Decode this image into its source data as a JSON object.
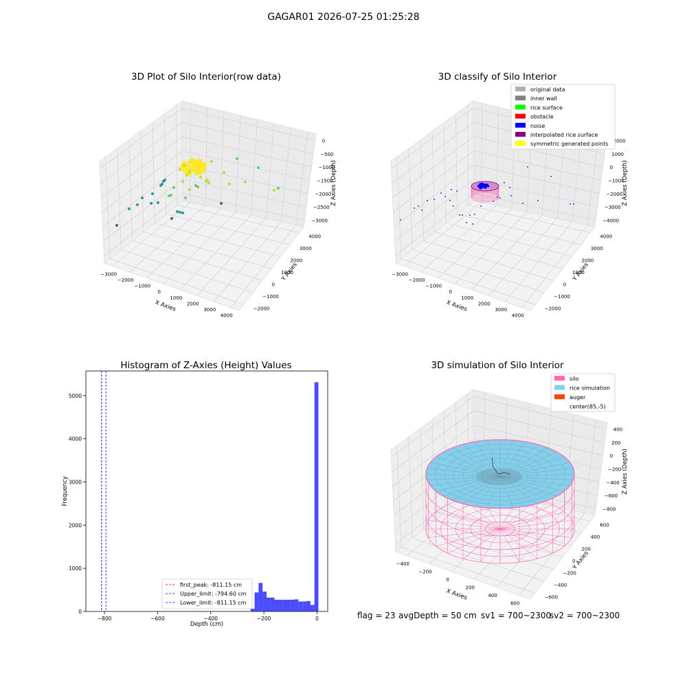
{
  "suptitle": "GAGAR01 2026-07-25 01:25:28",
  "footer": {
    "flag": "flag = 23",
    "avg_depth": "avgDepth = 50 cm",
    "sv1": "sv1 = 700~2300",
    "sv2": "sv2 = 700~2300"
  },
  "chart_data": [
    {
      "id": "raw-scatter",
      "type": "scatter",
      "projection": "3d",
      "title": "3D Plot of Silo Interior(row data)",
      "xlabel": "X Axies",
      "ylabel": "Y Axies",
      "zlabel": "Z Axies (Depth)",
      "x_ticks": [
        "−3000",
        "−2000",
        "−1000",
        "0",
        "1000",
        "2000",
        "3000",
        "4000"
      ],
      "y_ticks": [
        "−2000",
        "−1000",
        "0",
        "1000",
        "2000",
        "3000",
        "4000"
      ],
      "z_ticks": [
        "0",
        "−500",
        "−1000",
        "−1500",
        "−2000",
        "−2500",
        "−3000"
      ],
      "colormap": [
        "#3b528b",
        "#21918c",
        "#5ec962",
        "#b5de2b",
        "#fde725"
      ]
    },
    {
      "id": "classify",
      "type": "scatter",
      "projection": "3d",
      "title": "3D classify of Silo Interior",
      "xlabel": "X Axies",
      "ylabel": "Y Axies",
      "zlabel": "Z Axies (Depth)",
      "x_ticks": [
        "−3000",
        "−2000",
        "−1000",
        "0",
        "1000",
        "2000",
        "3000",
        "4000"
      ],
      "y_ticks": [
        "−2000",
        "−1000",
        "0",
        "1000",
        "2000",
        "3000",
        "4000"
      ],
      "z_ticks": [
        "2000",
        "1000",
        "0",
        "−1000",
        "−2000",
        "−3000",
        "−4000"
      ],
      "legend_position": "upper-right",
      "legend": [
        {
          "label": "original data",
          "color": "#b0b0b0"
        },
        {
          "label": "inner wall",
          "color": "#808080"
        },
        {
          "label": "rice surface",
          "color": "#00ff00"
        },
        {
          "label": "obstacle",
          "color": "#ff0000"
        },
        {
          "label": "noise",
          "color": "#0000ff"
        },
        {
          "label": "interpolated rice surface",
          "color": "#800080"
        },
        {
          "label": "symmetric generated points",
          "color": "#ffff00"
        }
      ]
    },
    {
      "id": "histogram",
      "type": "bar",
      "title": "Histogram of Z-Axies (Height) Values",
      "xlabel": "Depth (cm)",
      "ylabel": "Frequency",
      "xlim": [
        -870,
        40
      ],
      "ylim": [
        0,
        5570
      ],
      "x_ticks": [
        -800,
        -600,
        -400,
        -200,
        0
      ],
      "x_tick_labels": [
        "−800",
        "−600",
        "−400",
        "−200",
        "0"
      ],
      "y_ticks": [
        0,
        1000,
        2000,
        3000,
        4000,
        5000
      ],
      "bar_color": "#0000ff",
      "bins": [
        {
          "x0": -250,
          "x1": -235,
          "value": 60
        },
        {
          "x0": -235,
          "x1": -220,
          "value": 440
        },
        {
          "x0": -220,
          "x1": -205,
          "value": 660
        },
        {
          "x0": -205,
          "x1": -190,
          "value": 460
        },
        {
          "x0": -190,
          "x1": -175,
          "value": 320
        },
        {
          "x0": -175,
          "x1": -160,
          "value": 320
        },
        {
          "x0": -160,
          "x1": -145,
          "value": 270
        },
        {
          "x0": -145,
          "x1": -130,
          "value": 270
        },
        {
          "x0": -130,
          "x1": -115,
          "value": 270
        },
        {
          "x0": -115,
          "x1": -100,
          "value": 270
        },
        {
          "x0": -100,
          "x1": -85,
          "value": 270
        },
        {
          "x0": -85,
          "x1": -70,
          "value": 280
        },
        {
          "x0": -70,
          "x1": -55,
          "value": 230
        },
        {
          "x0": -55,
          "x1": -40,
          "value": 230
        },
        {
          "x0": -40,
          "x1": -25,
          "value": 240
        },
        {
          "x0": -25,
          "x1": -10,
          "value": 150
        },
        {
          "x0": -10,
          "x1": 5,
          "value": 5310
        }
      ],
      "vlines": [
        {
          "label": "first_peak: -811.15 cm",
          "x": -811.15,
          "color": "#ff0000"
        },
        {
          "label": "Upper_limit: -794.60 cm",
          "x": -794.6,
          "color": "#0000ff"
        },
        {
          "label": "Lower_limit: -811.15 cm",
          "x": -811.15,
          "color": "#0000ff"
        }
      ],
      "legend_position": "lower-center"
    },
    {
      "id": "simulation",
      "type": "surface",
      "projection": "3d",
      "title": "3D simulation of Silo Interior",
      "xlabel": "X Axies",
      "ylabel": "Y Axies",
      "zlabel": "Z Axies (Depth)",
      "x_ticks": [
        "−400",
        "−200",
        "0",
        "200",
        "400",
        "600"
      ],
      "y_ticks": [
        "−600",
        "−400",
        "−200",
        "0",
        "200",
        "400",
        "600"
      ],
      "z_ticks": [
        "400",
        "200",
        "0",
        "−200",
        "−400",
        "−600",
        "−800"
      ],
      "legend_position": "upper-right",
      "legend": [
        {
          "label": "silo",
          "color": "#ff69b4"
        },
        {
          "label": "rice simulation",
          "color": "#87ceeb"
        },
        {
          "label": "auger",
          "color": "#ff4500"
        },
        {
          "label": "center(85,-5)",
          "color": ""
        }
      ]
    }
  ]
}
